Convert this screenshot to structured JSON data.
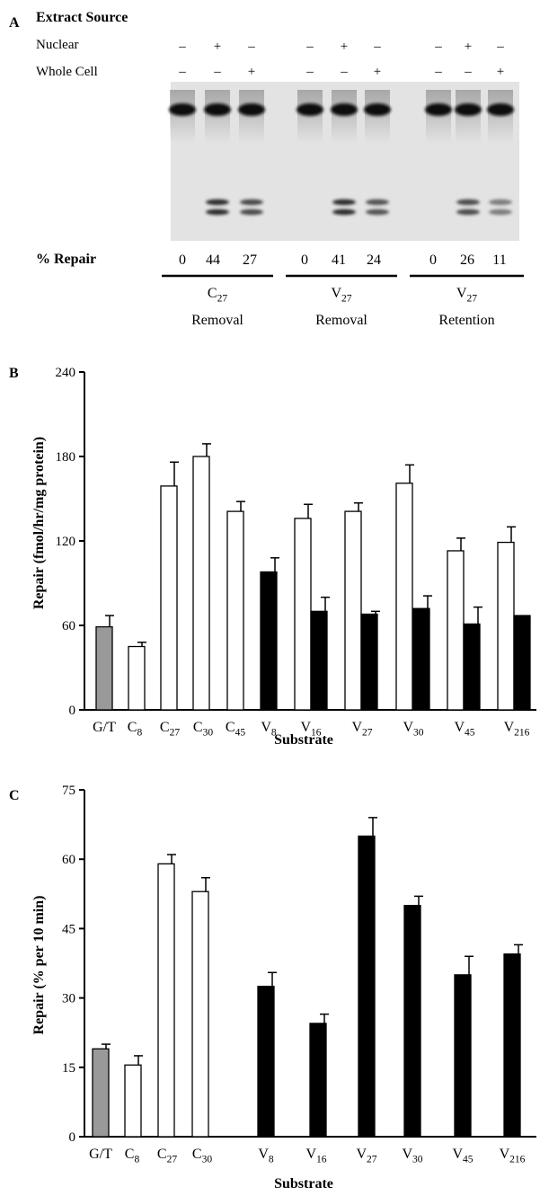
{
  "panel_a": {
    "label": "A",
    "header": "Extract Source",
    "row_labels": [
      "Nuclear",
      "Whole Cell"
    ],
    "lane_symbols": {
      "nuclear": [
        "–",
        "+",
        "–",
        "–",
        "+",
        "–",
        "–",
        "+",
        "–"
      ],
      "whole_cell": [
        "–",
        "–",
        "+",
        "–",
        "–",
        "+",
        "–",
        "–",
        "+"
      ]
    },
    "repair_label": "% Repair",
    "repair_values": [
      "0",
      "44",
      "27",
      "0",
      "41",
      "24",
      "0",
      "26",
      "11"
    ],
    "groups": [
      {
        "base": "C",
        "sub": "27",
        "caption": "Removal"
      },
      {
        "base": "V",
        "sub": "27",
        "caption": "Removal"
      },
      {
        "base": "V",
        "sub": "27",
        "caption": "Retention"
      }
    ]
  },
  "chart_data": [
    {
      "panel": "B",
      "type": "bar",
      "ylabel": "Repair (fmol/hr/mg protein)",
      "xlabel": "Substrate",
      "ylim": [
        0,
        240
      ],
      "yticks": [
        0,
        60,
        120,
        180,
        240
      ],
      "categories": [
        {
          "base": "G/T",
          "sub": ""
        },
        {
          "base": "C",
          "sub": "8"
        },
        {
          "base": "C",
          "sub": "27"
        },
        {
          "base": "C",
          "sub": "30"
        },
        {
          "base": "C",
          "sub": "45"
        },
        {
          "base": "V",
          "sub": "8"
        },
        {
          "base": "V",
          "sub": "16"
        },
        {
          "base": "V",
          "sub": "27"
        },
        {
          "base": "V",
          "sub": "30"
        },
        {
          "base": "V",
          "sub": "45"
        },
        {
          "base": "V",
          "sub": "216"
        }
      ],
      "bars": [
        {
          "label_index": 0,
          "value": 59,
          "err": 8,
          "fill": "gray"
        },
        {
          "label_index": 1,
          "value": 45,
          "err": 3,
          "fill": "white"
        },
        {
          "label_index": 2,
          "value": 159,
          "err": 17,
          "fill": "white"
        },
        {
          "label_index": 3,
          "value": 180,
          "err": 9,
          "fill": "white"
        },
        {
          "label_index": 4,
          "value": 141,
          "err": 7,
          "fill": "white"
        },
        {
          "label_index": 5,
          "value": 98,
          "err": 10,
          "fill": "black"
        },
        {
          "label_index": 6,
          "value": 136,
          "err": 10,
          "fill": "white"
        },
        {
          "label_index": 6,
          "value": 70,
          "err": 10,
          "fill": "black"
        },
        {
          "label_index": 7,
          "value": 141,
          "err": 6,
          "fill": "white"
        },
        {
          "label_index": 7,
          "value": 68,
          "err": 2,
          "fill": "black"
        },
        {
          "label_index": 8,
          "value": 161,
          "err": 13,
          "fill": "white"
        },
        {
          "label_index": 8,
          "value": 72,
          "err": 9,
          "fill": "black"
        },
        {
          "label_index": 9,
          "value": 113,
          "err": 9,
          "fill": "white"
        },
        {
          "label_index": 9,
          "value": 61,
          "err": 12,
          "fill": "black"
        },
        {
          "label_index": 10,
          "value": 119,
          "err": 11,
          "fill": "white"
        },
        {
          "label_index": 10,
          "value": 67,
          "err": 0,
          "fill": "black"
        }
      ]
    },
    {
      "panel": "C",
      "type": "bar",
      "ylabel": "Repair (% per 10 min)",
      "xlabel": "Substrate",
      "ylim": [
        0,
        75
      ],
      "yticks": [
        0,
        15,
        30,
        45,
        60,
        75
      ],
      "categories": [
        {
          "base": "G/T",
          "sub": ""
        },
        {
          "base": "C",
          "sub": "8"
        },
        {
          "base": "C",
          "sub": "27"
        },
        {
          "base": "C",
          "sub": "30"
        },
        {
          "base": "V",
          "sub": "8"
        },
        {
          "base": "V",
          "sub": "16"
        },
        {
          "base": "V",
          "sub": "27"
        },
        {
          "base": "V",
          "sub": "30"
        },
        {
          "base": "V",
          "sub": "45"
        },
        {
          "base": "V",
          "sub": "216"
        }
      ],
      "bars": [
        {
          "label_index": 0,
          "value": 19,
          "err": 1,
          "fill": "gray"
        },
        {
          "label_index": 1,
          "value": 15.5,
          "err": 2,
          "fill": "white"
        },
        {
          "label_index": 2,
          "value": 59,
          "err": 2,
          "fill": "white"
        },
        {
          "label_index": 3,
          "value": 53,
          "err": 3,
          "fill": "white"
        },
        {
          "label_index": 4,
          "value": 32.5,
          "err": 3,
          "fill": "black"
        },
        {
          "label_index": 5,
          "value": 24.5,
          "err": 2,
          "fill": "black"
        },
        {
          "label_index": 6,
          "value": 65,
          "err": 4,
          "fill": "black"
        },
        {
          "label_index": 7,
          "value": 50,
          "err": 2,
          "fill": "black"
        },
        {
          "label_index": 8,
          "value": 35,
          "err": 4,
          "fill": "black"
        },
        {
          "label_index": 9,
          "value": 39.5,
          "err": 2,
          "fill": "black"
        }
      ]
    }
  ]
}
